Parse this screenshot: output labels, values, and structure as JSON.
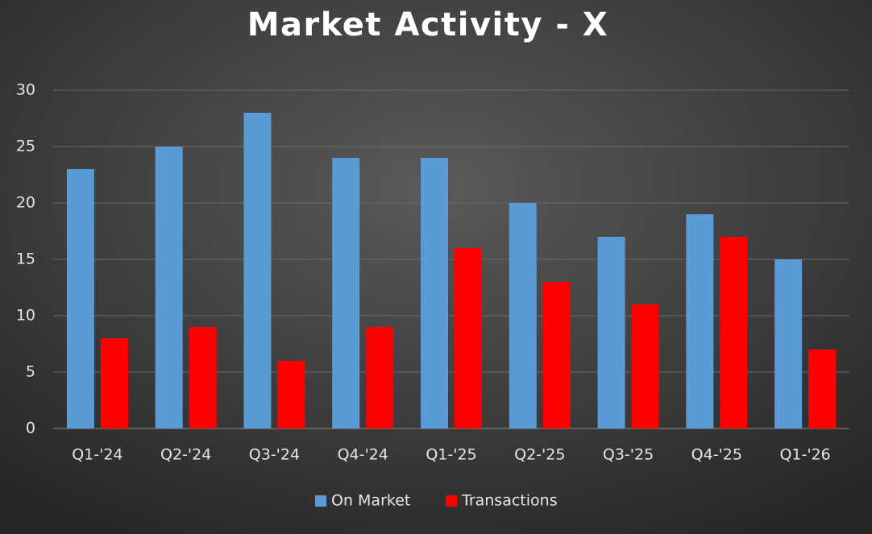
{
  "chart_data": {
    "type": "bar",
    "title": "Market Activity - X",
    "categories": [
      "Q1-'24",
      "Q2-'24",
      "Q3-'24",
      "Q4-'24",
      "Q1-'25",
      "Q2-'25",
      "Q3-'25",
      "Q4-'25",
      "Q1-'26"
    ],
    "series": [
      {
        "name": "On Market",
        "color": "#5b9bd5",
        "values": [
          23,
          25,
          28,
          24,
          24,
          20,
          17,
          19,
          15
        ]
      },
      {
        "name": "Transactions",
        "color": "#ff0000",
        "values": [
          8,
          9,
          6,
          9,
          16,
          13,
          11,
          17,
          7
        ]
      }
    ],
    "ylim": [
      0,
      30
    ],
    "yticks": [
      0,
      5,
      10,
      15,
      20,
      25,
      30
    ],
    "grid": true,
    "legend": "bottom"
  }
}
